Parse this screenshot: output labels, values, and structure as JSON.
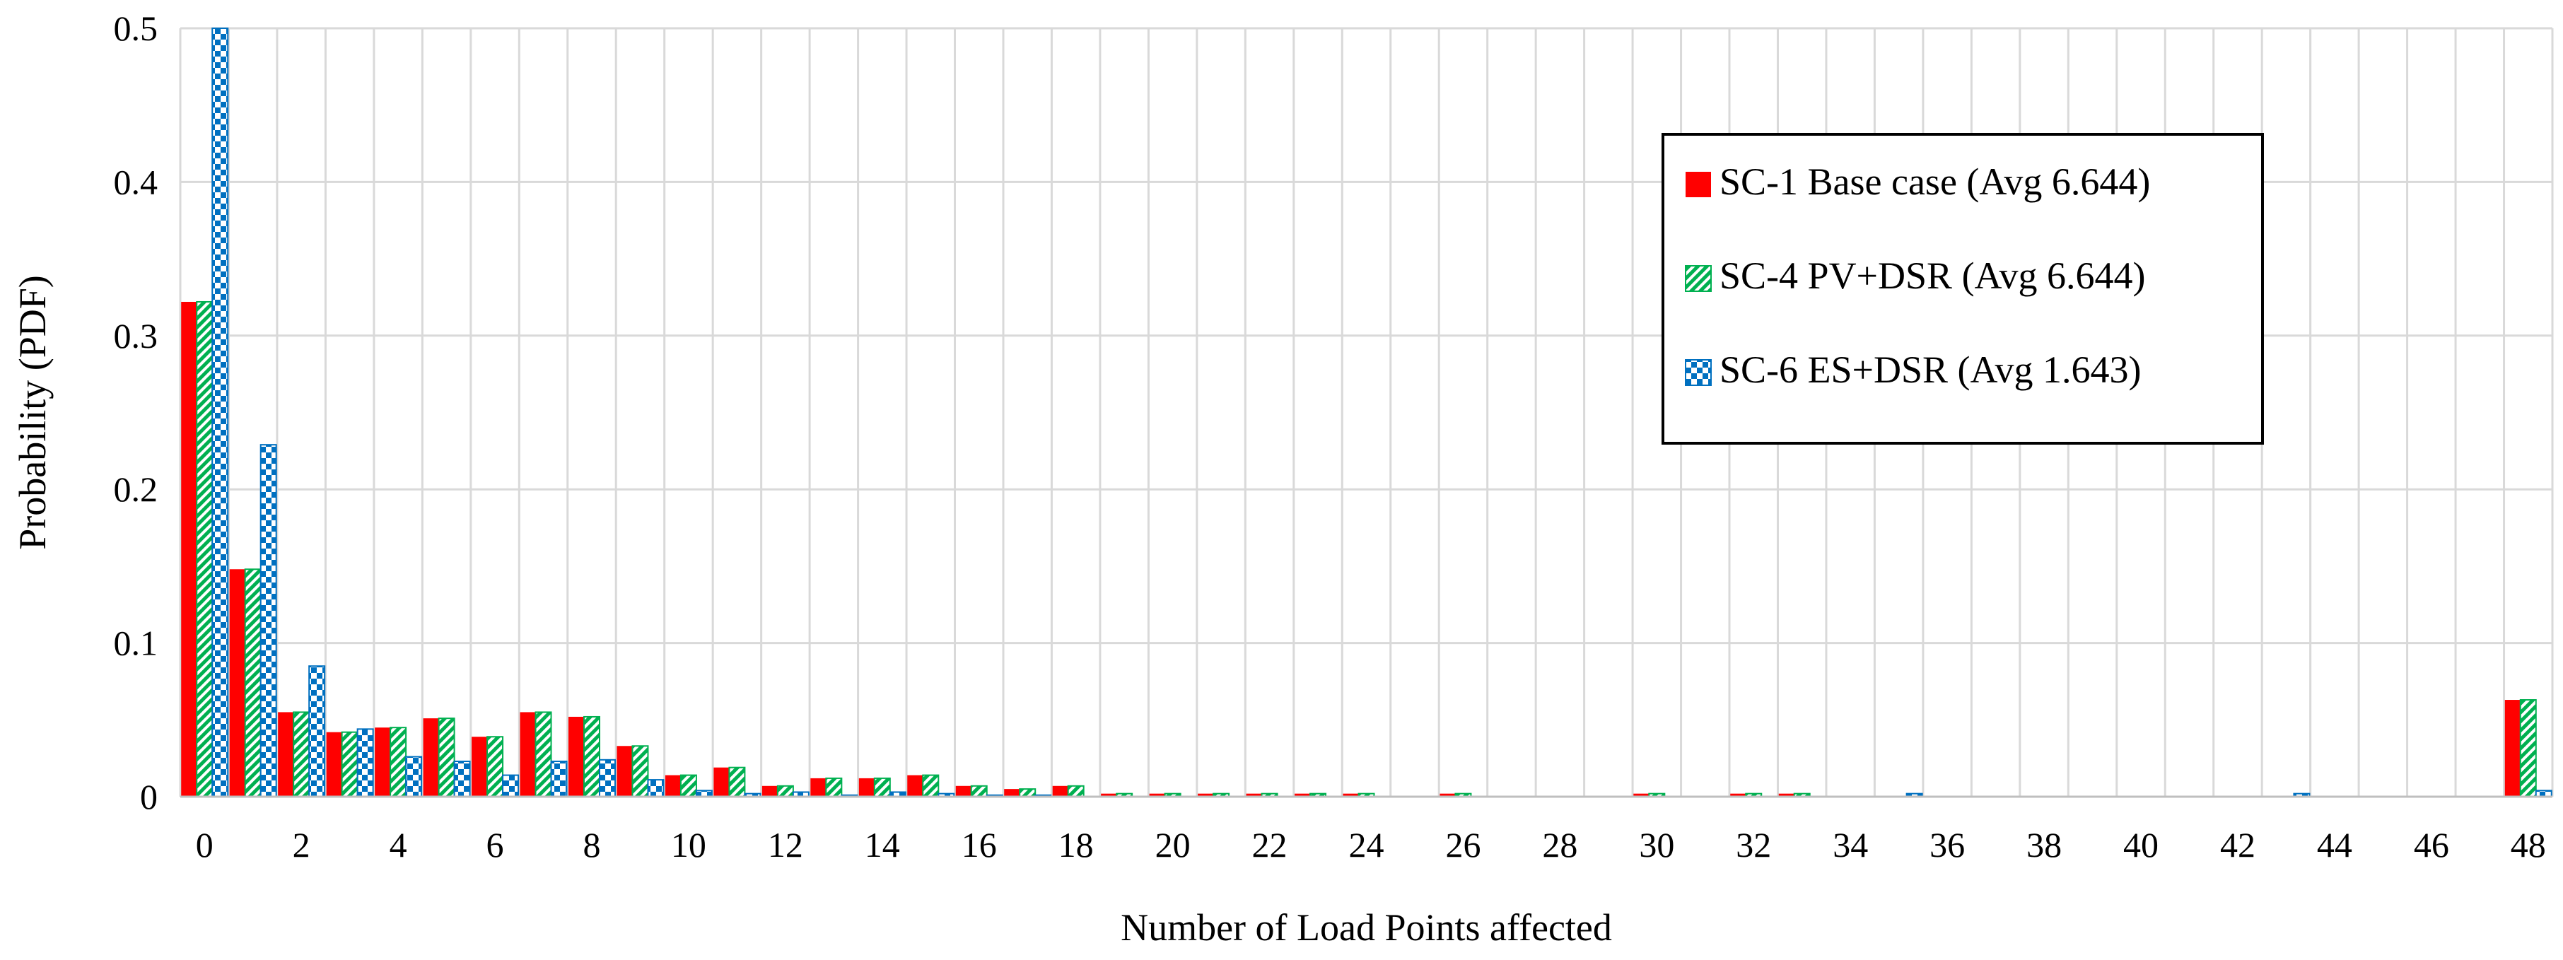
{
  "chart_data": {
    "type": "bar",
    "title": "",
    "xlabel": "Number of Load Points affected",
    "ylabel": "Probability (PDF)",
    "ylim": [
      0,
      0.5
    ],
    "yticks": [
      0,
      0.1,
      0.2,
      0.3,
      0.4,
      0.5
    ],
    "ytick_labels": [
      "0",
      "0.1",
      "0.2",
      "0.3",
      "0.4",
      "0.5"
    ],
    "xticks_labeled": [
      0,
      2,
      4,
      6,
      8,
      10,
      12,
      14,
      16,
      18,
      20,
      22,
      24,
      26,
      28,
      30,
      32,
      34,
      36,
      38,
      40,
      42,
      44,
      46,
      48
    ],
    "categories": [
      0,
      1,
      2,
      3,
      4,
      5,
      6,
      7,
      8,
      9,
      10,
      11,
      12,
      13,
      14,
      15,
      16,
      17,
      18,
      19,
      20,
      21,
      22,
      23,
      24,
      25,
      26,
      27,
      28,
      29,
      30,
      31,
      32,
      33,
      34,
      35,
      36,
      37,
      38,
      39,
      40,
      41,
      42,
      43,
      44,
      45,
      46,
      47,
      48
    ],
    "grid": true,
    "legend_position": "top-right",
    "series": [
      {
        "name": "SC-1 Base case (Avg 6.644)",
        "color": "#ff0000",
        "pattern": "solid",
        "values": [
          0.322,
          0.148,
          0.055,
          0.042,
          0.045,
          0.051,
          0.039,
          0.055,
          0.052,
          0.033,
          0.014,
          0.019,
          0.007,
          0.012,
          0.012,
          0.014,
          0.007,
          0.005,
          0.007,
          0.002,
          0.002,
          0.002,
          0.002,
          0.002,
          0.002,
          0,
          0.002,
          0,
          0,
          0,
          0.002,
          0,
          0.002,
          0.002,
          0,
          0,
          0,
          0,
          0,
          0,
          0,
          0,
          0,
          0,
          0,
          0,
          0,
          0,
          0.063
        ]
      },
      {
        "name": "SC-4 PV+DSR (Avg 6.644)",
        "color": "#00b050",
        "pattern": "diagonal",
        "values": [
          0.322,
          0.148,
          0.055,
          0.042,
          0.045,
          0.051,
          0.039,
          0.055,
          0.052,
          0.033,
          0.014,
          0.019,
          0.007,
          0.012,
          0.012,
          0.014,
          0.007,
          0.005,
          0.007,
          0.002,
          0.002,
          0.002,
          0.002,
          0.002,
          0.002,
          0,
          0.002,
          0,
          0,
          0,
          0.002,
          0,
          0.002,
          0.002,
          0,
          0,
          0,
          0,
          0,
          0,
          0,
          0,
          0,
          0,
          0,
          0,
          0,
          0,
          0.063
        ]
      },
      {
        "name": "SC-6 ES+DSR (Avg 1.643)",
        "color": "#0070c0",
        "pattern": "checker",
        "values": [
          0.5,
          0.229,
          0.085,
          0.044,
          0.026,
          0.023,
          0.014,
          0.023,
          0.024,
          0.011,
          0.004,
          0.002,
          0.003,
          0.001,
          0.003,
          0.002,
          0.001,
          0.001,
          0,
          0,
          0,
          0,
          0,
          0,
          0,
          0,
          0,
          0,
          0,
          0,
          0,
          0,
          0,
          0,
          0,
          0.002,
          0,
          0,
          0,
          0,
          0,
          0,
          0,
          0.002,
          0,
          0,
          0,
          0,
          0.004
        ]
      }
    ]
  }
}
